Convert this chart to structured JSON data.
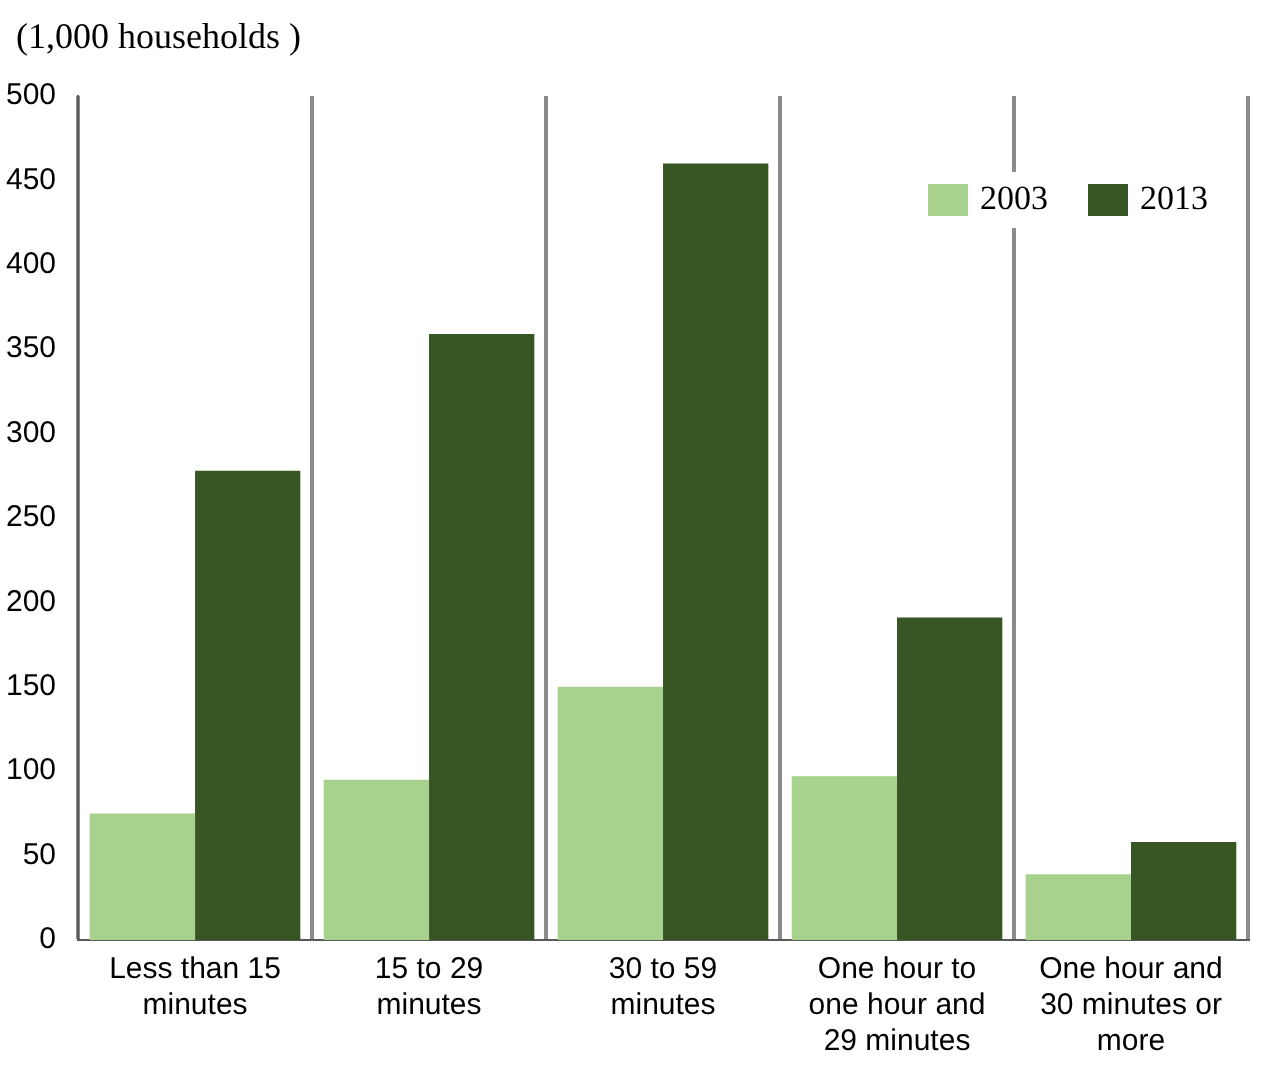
{
  "chart_data": {
    "type": "bar",
    "ylabel": "(1,000 households )",
    "categories": [
      "Less than 15 minutes",
      "15 to 29 minutes",
      "30 to 59 minutes",
      "One hour to one hour and 29 minutes",
      "One hour and 30 minutes or more"
    ],
    "series": [
      {
        "name": "2003",
        "color": "#a9d18e",
        "values": [
          75,
          95,
          150,
          97,
          39
        ]
      },
      {
        "name": "2013",
        "color": "#375623",
        "values": [
          278,
          359,
          460,
          191,
          58
        ]
      }
    ],
    "ylim": [
      0,
      500
    ],
    "yticks": [
      0,
      50,
      100,
      150,
      200,
      250,
      300,
      350,
      400,
      450,
      500
    ],
    "grid": "x",
    "legend": "top right"
  }
}
